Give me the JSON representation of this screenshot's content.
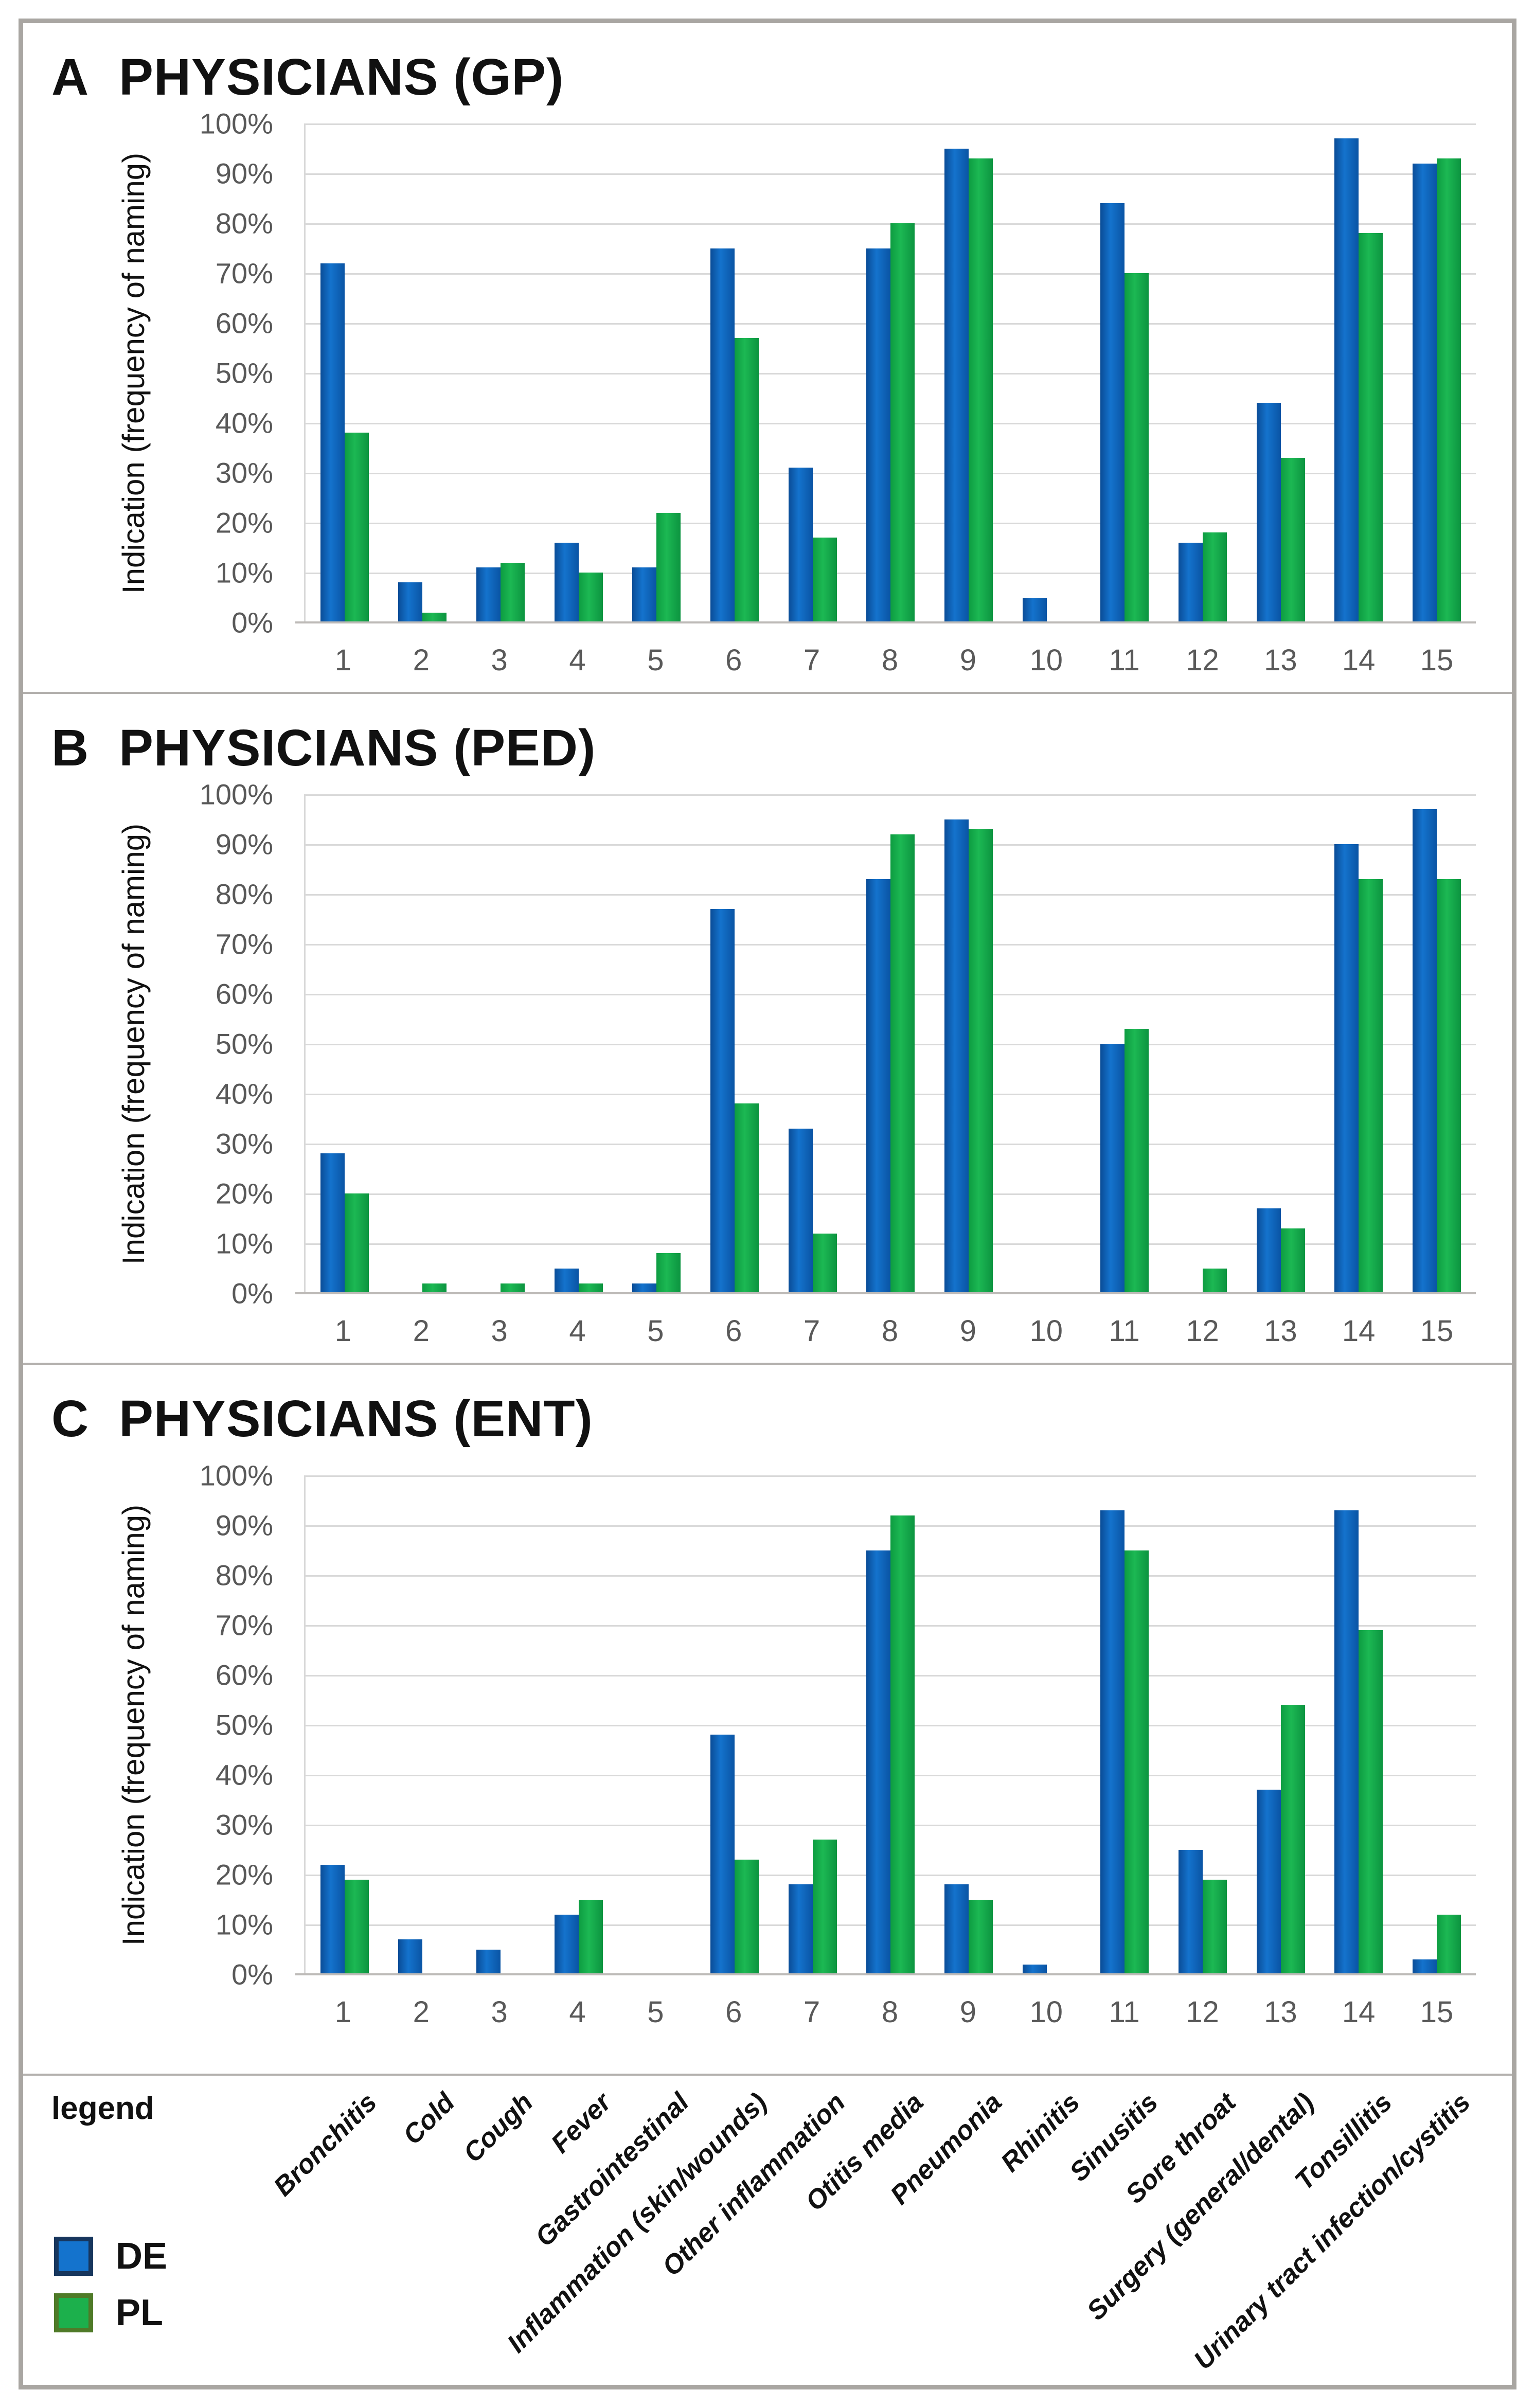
{
  "figure": {
    "legend_title": "legend",
    "legend": [
      {
        "label": "DE",
        "color": "#1473cd",
        "border": "#17365d"
      },
      {
        "label": "PL",
        "color": "#1cb04c",
        "border": "#4f7a28"
      }
    ],
    "frame_color": "#a9a6a2",
    "gridline_color": "#d9d9d9",
    "tick_color": "#595959"
  },
  "chart_data": {
    "type": "bar",
    "categories": [
      "1",
      "2",
      "3",
      "4",
      "5",
      "6",
      "7",
      "8",
      "9",
      "10",
      "11",
      "12",
      "13",
      "14",
      "15"
    ],
    "category_names": [
      "Bronchitis",
      "Cold",
      "Cough",
      "Fever",
      "Gastrointestinal",
      "Inflammation (skin/wounds)",
      "Other inflammation",
      "Otitis media",
      "Pneumonia",
      "Rhinitis",
      "Sinusitis",
      "Sore throat",
      "Surgery (general/dental)",
      "Tonsillitis",
      "Urinary tract infection/cystitis"
    ],
    "ylabel": "Indication (frequency of naming)",
    "yticks": [
      "100%",
      "90%",
      "80%",
      "70%",
      "60%",
      "50%",
      "40%",
      "30%",
      "20%",
      "10%",
      "0%"
    ],
    "ylim": [
      0,
      100
    ],
    "grid": true,
    "legend_position": "bottom-left",
    "series_names": [
      "DE",
      "PL"
    ],
    "panels": [
      {
        "panel_letter": "A",
        "title": "PHYSICIANS (GP)",
        "series": [
          {
            "name": "DE",
            "values": [
              72,
              8,
              11,
              16,
              11,
              75,
              31,
              75,
              95,
              5,
              84,
              16,
              44,
              97,
              92
            ]
          },
          {
            "name": "PL",
            "values": [
              38,
              2,
              12,
              10,
              22,
              57,
              17,
              80,
              93,
              0,
              70,
              18,
              33,
              78,
              93
            ]
          }
        ]
      },
      {
        "panel_letter": "B",
        "title": "PHYSICIANS (PED)",
        "series": [
          {
            "name": "DE",
            "values": [
              28,
              0,
              0,
              5,
              2,
              77,
              33,
              83,
              95,
              0,
              50,
              0,
              17,
              90,
              97
            ]
          },
          {
            "name": "PL",
            "values": [
              20,
              2,
              2,
              2,
              8,
              38,
              12,
              92,
              93,
              0,
              53,
              5,
              13,
              83,
              83
            ]
          }
        ]
      },
      {
        "panel_letter": "C",
        "title": "PHYSICIANS (ENT)",
        "series": [
          {
            "name": "DE",
            "values": [
              22,
              7,
              5,
              12,
              0,
              48,
              18,
              85,
              18,
              2,
              93,
              25,
              37,
              93,
              3
            ]
          },
          {
            "name": "PL",
            "values": [
              19,
              0,
              0,
              15,
              0,
              23,
              27,
              92,
              15,
              0,
              85,
              19,
              54,
              69,
              12
            ]
          }
        ]
      }
    ]
  }
}
